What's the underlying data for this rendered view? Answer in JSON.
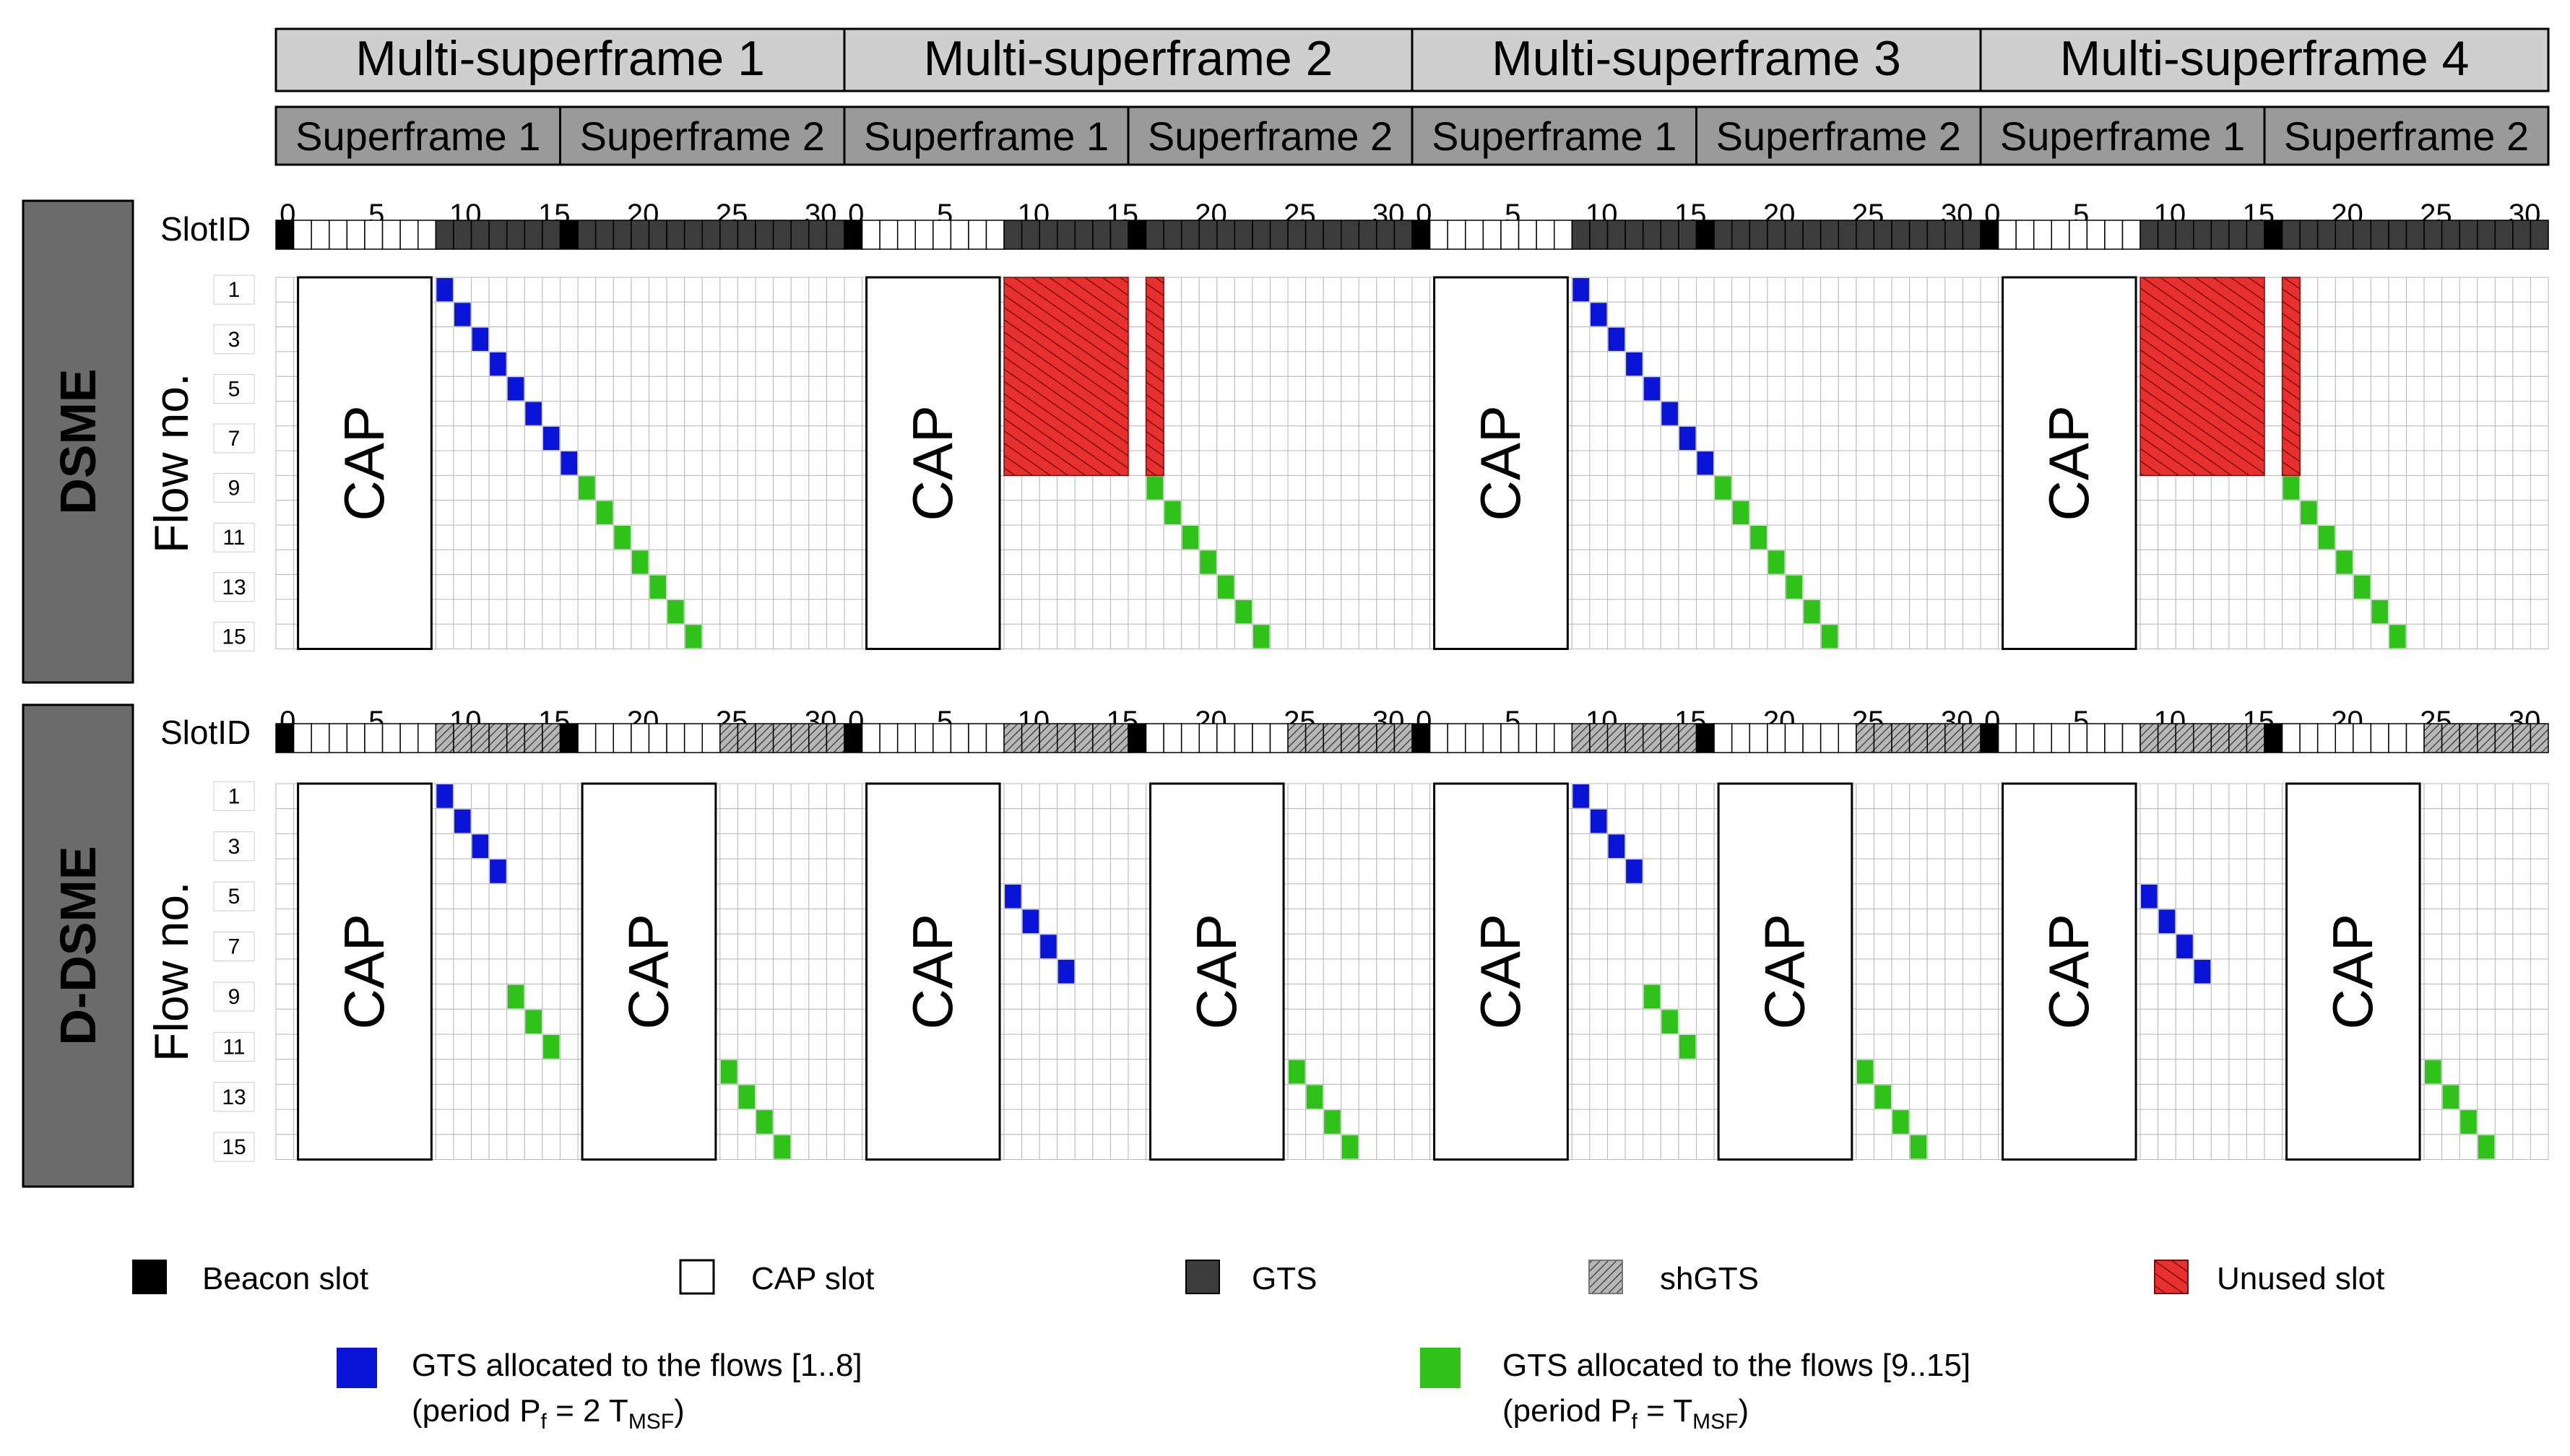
{
  "multi_superframes": [
    "Multi-superframe 1",
    "Multi-superframe 2",
    "Multi-superframe 3",
    "Multi-superframe 4"
  ],
  "superframes": [
    "Superframe 1",
    "Superframe 2"
  ],
  "slot_axis": {
    "label": "SlotID",
    "ticks": [
      "0",
      "5",
      "10",
      "15",
      "20",
      "25",
      "30"
    ]
  },
  "panels": [
    {
      "title": "DSME",
      "y_label": "Flow no."
    },
    {
      "title": "D-DSME",
      "y_label": "Flow no."
    }
  ],
  "flow_ticks": [
    "1",
    "3",
    "5",
    "7",
    "9",
    "11",
    "13",
    "15"
  ],
  "cap_label": "CAP",
  "legend": {
    "beacon": "Beacon slot",
    "cap": "CAP slot",
    "gts": "GTS",
    "shgts": "shGTS",
    "unused": "Unused slot",
    "gts_blue_line1": "GTS allocated to the flows [1..8]",
    "gts_blue_line2_prefix": "(period P",
    "gts_blue_line2_sub_f": "f",
    "gts_blue_line2_mid": " = 2 T",
    "gts_blue_line2_sub_msf": "MSF",
    "gts_blue_line2_suffix": ")",
    "gts_green_line1": "GTS allocated to the flows [9..15]",
    "gts_green_line2_prefix": "(period P",
    "gts_green_line2_sub_f": "f",
    "gts_green_line2_mid": " = T",
    "gts_green_line2_sub_msf": "MSF",
    "gts_green_line2_suffix": ")"
  },
  "colors": {
    "header_fill": "#cfcfcf",
    "superframe_fill": "#9a9a9a",
    "panel_title_fill": "#6b6b6b",
    "beacon": "#000000",
    "gts": "#3c3c3c",
    "shgts": "#a8a8a8",
    "unused": "#e8302e",
    "blue": "#0a14d8",
    "green": "#2fc31a"
  }
}
